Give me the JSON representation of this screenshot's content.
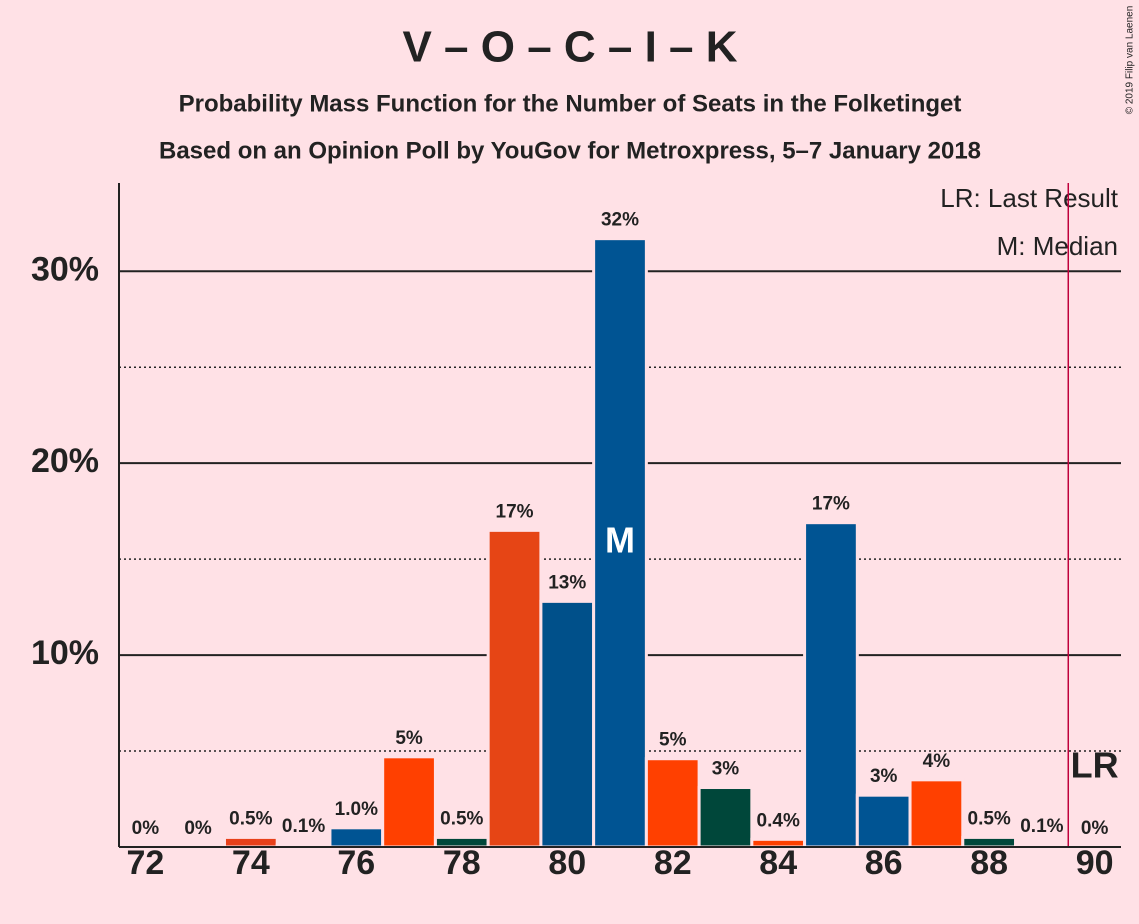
{
  "chart_data": {
    "type": "bar",
    "title": "V – O – C – I – K",
    "subtitle": "Probability Mass Function for the Number of Seats in the Folketinget",
    "subtitle2": "Based on an Opinion Poll by YouGov for Metroxpress, 5–7 January 2018",
    "copyright": "© 2019 Filip van Laenen",
    "legend": [
      "LR: Last Result",
      "M: Median"
    ],
    "x": [
      72,
      73,
      74,
      75,
      76,
      77,
      78,
      79,
      80,
      81,
      82,
      83,
      84,
      85,
      86,
      87,
      88,
      89,
      90
    ],
    "values": [
      0,
      0,
      0.5,
      0.1,
      1.0,
      4.7,
      0.5,
      16.5,
      12.8,
      31.7,
      4.6,
      3.1,
      0.4,
      16.9,
      2.7,
      3.5,
      0.5,
      0.1,
      0
    ],
    "value_labels": [
      "0%",
      "0%",
      "0.5%",
      "0.1%",
      "1.0%",
      "5%",
      "0.5%",
      "17%",
      "13%",
      "32%",
      "5%",
      "3%",
      "0.4%",
      "17%",
      "3%",
      "4%",
      "0.5%",
      "0.1%",
      "0%"
    ],
    "colors": [
      "#e8401a",
      "#005493",
      "#e8401a",
      "#005493",
      "#005493",
      "#ff4000",
      "#00473a",
      "#e64515",
      "#00508a",
      "#005493",
      "#ff4000",
      "#00473a",
      "#ff4000",
      "#005493",
      "#005493",
      "#ff4000",
      "#00473a",
      "#005493",
      "#ff4000"
    ],
    "xlim": [
      71.5,
      90.5
    ],
    "xticks": [
      72,
      74,
      76,
      78,
      80,
      82,
      84,
      86,
      88,
      90
    ],
    "ylim": [
      0,
      34.6
    ],
    "yticks": [
      {
        "value": 10,
        "label": "10%"
      },
      {
        "value": 20,
        "label": "20%"
      },
      {
        "value": 30,
        "label": "30%"
      }
    ],
    "minor_yticks": [
      5,
      15,
      25
    ],
    "grid": true,
    "median": 81,
    "median_label": "M",
    "last_result": 90,
    "last_result_label": "LR"
  }
}
